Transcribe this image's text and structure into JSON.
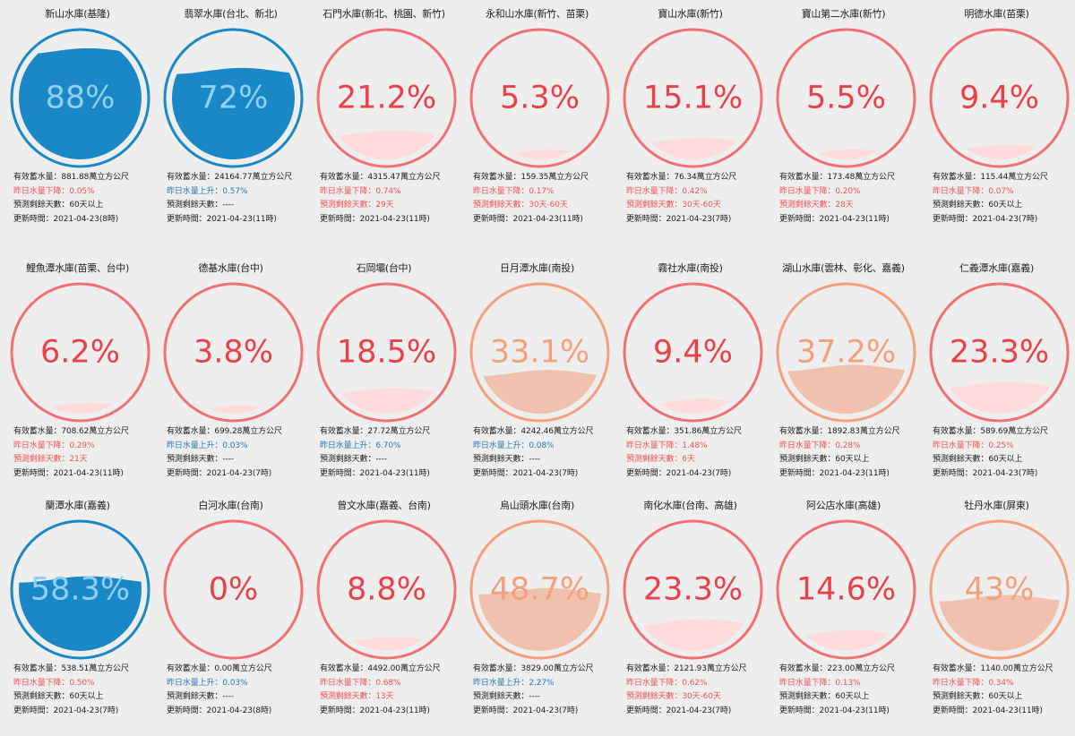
{
  "labels": {
    "capacity_prefix": "有效蓄水量：",
    "capacity_suffix": "萬立方公尺",
    "down_prefix": "昨日水量下降：",
    "up_prefix": "昨日水量上升：",
    "days_prefix": "預測剩餘天數：",
    "time_prefix": "更新時間："
  },
  "colors": {
    "blue": "#1a87c6",
    "blue_text": "#8fd0f5",
    "red": "#f26f72",
    "red_text": "#ea4048",
    "red_fill": "#ffdcdc",
    "orange": "#f5a07c",
    "orange_text": "#f5a07c",
    "orange_fill": "#f0c2ae"
  },
  "reservoirs": [
    {
      "name": "新山水庫(基隆)",
      "pct_text": "88%",
      "level": 0.88,
      "theme": "blue",
      "capacity": "881.88",
      "change_dir": "down",
      "change": "0.05%",
      "days": "60天以上",
      "days_red": false,
      "time": "2021-04-23(8時)"
    },
    {
      "name": "翡翠水庫(台北、新北)",
      "pct_text": "72%",
      "level": 0.72,
      "theme": "blue",
      "capacity": "24164.77",
      "change_dir": "up",
      "change": "0.57%",
      "days": "----",
      "days_red": false,
      "time": "2021-04-23(11時)"
    },
    {
      "name": "石門水庫(新北、桃園、新竹)",
      "pct_text": "21.2%",
      "level": 0.212,
      "theme": "red",
      "capacity": "4315.47",
      "change_dir": "down",
      "change": "0.74%",
      "days": "29天",
      "days_red": true,
      "time": "2021-04-23(11時)"
    },
    {
      "name": "永和山水庫(新竹、苗栗)",
      "pct_text": "5.3%",
      "level": 0.053,
      "theme": "red",
      "capacity": "159.35",
      "change_dir": "down",
      "change": "0.17%",
      "days": "30天-60天",
      "days_red": true,
      "time": "2021-04-23(11時)"
    },
    {
      "name": "寶山水庫(新竹)",
      "pct_text": "15.1%",
      "level": 0.151,
      "theme": "red",
      "capacity": "76.34",
      "change_dir": "down",
      "change": "0.42%",
      "days": "30天-60天",
      "days_red": true,
      "time": "2021-04-23(7時)"
    },
    {
      "name": "寶山第二水庫(新竹)",
      "pct_text": "5.5%",
      "level": 0.055,
      "theme": "red",
      "capacity": "173.48",
      "change_dir": "down",
      "change": "0.20%",
      "days": "28天",
      "days_red": true,
      "time": "2021-04-23(11時)"
    },
    {
      "name": "明德水庫(苗栗)",
      "pct_text": "9.4%",
      "level": 0.094,
      "theme": "red",
      "capacity": "115.44",
      "change_dir": "down",
      "change": "0.07%",
      "days": "60天以上",
      "days_red": false,
      "time": "2021-04-23(7時)"
    },
    {
      "name": "鯉魚潭水庫(苗栗、台中)",
      "pct_text": "6.2%",
      "level": 0.062,
      "theme": "red",
      "capacity": "708.62",
      "change_dir": "down",
      "change": "0.29%",
      "days": "21天",
      "days_red": true,
      "time": "2021-04-23(11時)"
    },
    {
      "name": "德基水庫(台中)",
      "pct_text": "3.8%",
      "level": 0.038,
      "theme": "red",
      "capacity": "699.28",
      "change_dir": "up",
      "change": "0.03%",
      "days": "----",
      "days_red": false,
      "time": "2021-04-23(7時)"
    },
    {
      "name": "石岡壩(台中)",
      "pct_text": "18.5%",
      "level": 0.185,
      "theme": "red",
      "capacity": "27.72",
      "change_dir": "up",
      "change": "6.70%",
      "days": "----",
      "days_red": false,
      "time": "2021-04-23(11時)"
    },
    {
      "name": "日月潭水庫(南投)",
      "pct_text": "33.1%",
      "level": 0.331,
      "theme": "orange",
      "capacity": "4242.46",
      "change_dir": "up",
      "change": "0.08%",
      "days": "----",
      "days_red": false,
      "time": "2021-04-23(7時)"
    },
    {
      "name": "霧社水庫(南投)",
      "pct_text": "9.4%",
      "level": 0.094,
      "theme": "red",
      "capacity": "351.86",
      "change_dir": "down",
      "change": "1.48%",
      "days": "6天",
      "days_red": true,
      "time": "2021-04-23(7時)"
    },
    {
      "name": "湖山水庫(雲林、彰化、嘉義)",
      "pct_text": "37.2%",
      "level": 0.372,
      "theme": "orange",
      "capacity": "1892.83",
      "change_dir": "down",
      "change": "0.28%",
      "days": "60天以上",
      "days_red": false,
      "time": "2021-04-23(11時)"
    },
    {
      "name": "仁義潭水庫(嘉義)",
      "pct_text": "23.3%",
      "level": 0.233,
      "theme": "red",
      "capacity": "589.69",
      "change_dir": "down",
      "change": "0.25%",
      "days": "60天以上",
      "days_red": false,
      "time": "2021-04-23(7時)"
    },
    {
      "name": "蘭潭水庫(嘉義)",
      "pct_text": "58.3%",
      "level": 0.583,
      "theme": "blue",
      "capacity": "538.51",
      "change_dir": "down",
      "change": "0.50%",
      "days": "60天以上",
      "days_red": false,
      "time": "2021-04-23(7時)"
    },
    {
      "name": "白河水庫(台南)",
      "pct_text": "0%",
      "level": 0.0,
      "theme": "red",
      "capacity": "0.00",
      "change_dir": "up",
      "change": "0.03%",
      "days": "----",
      "days_red": false,
      "time": "2021-04-23(8時)"
    },
    {
      "name": "曾文水庫(嘉義、台南)",
      "pct_text": "8.8%",
      "level": 0.088,
      "theme": "red",
      "capacity": "4492.00",
      "change_dir": "down",
      "change": "0.68%",
      "days": "13天",
      "days_red": true,
      "time": "2021-04-23(11時)"
    },
    {
      "name": "烏山頭水庫(台南)",
      "pct_text": "48.7%",
      "level": 0.487,
      "theme": "orange",
      "capacity": "3829.00",
      "change_dir": "up",
      "change": "2.27%",
      "days": "----",
      "days_red": false,
      "time": "2021-04-23(7時)"
    },
    {
      "name": "南化水庫(台南、高雄)",
      "pct_text": "23.3%",
      "level": 0.233,
      "theme": "red",
      "capacity": "2121.93",
      "change_dir": "down",
      "change": "0.62%",
      "days": "30天-60天",
      "days_red": true,
      "time": "2021-04-23(7時)"
    },
    {
      "name": "阿公店水庫(高雄)",
      "pct_text": "14.6%",
      "level": 0.146,
      "theme": "red",
      "capacity": "223.00",
      "change_dir": "down",
      "change": "0.13%",
      "days": "60天以上",
      "days_red": false,
      "time": "2021-04-23(11時)"
    },
    {
      "name": "牡丹水庫(屏東)",
      "pct_text": "43%",
      "level": 0.43,
      "theme": "orange",
      "capacity": "1140.00",
      "change_dir": "down",
      "change": "0.34%",
      "days": "60天以上",
      "days_red": false,
      "time": "2021-04-23(11時)"
    }
  ]
}
